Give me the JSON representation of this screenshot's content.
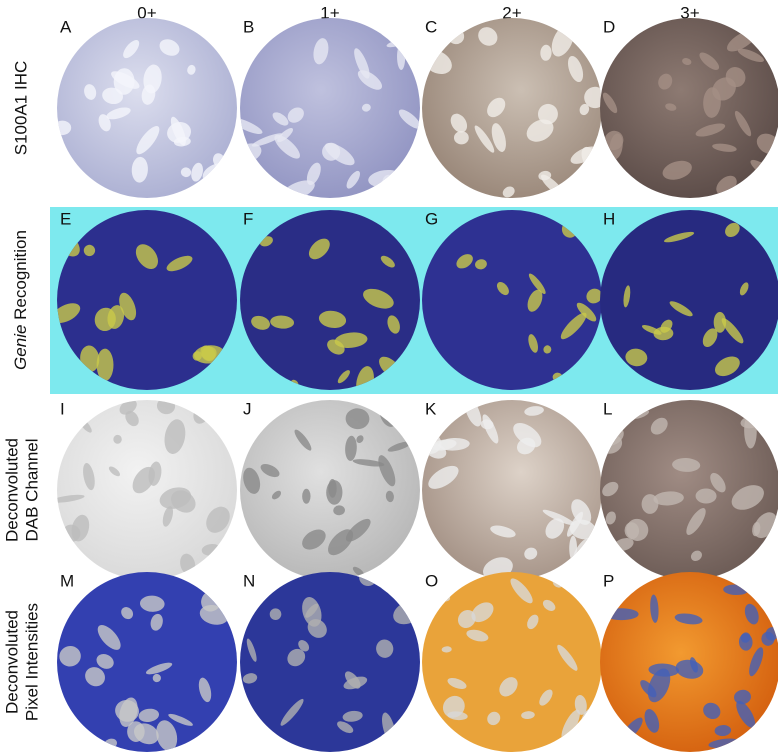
{
  "columns": [
    "0+",
    "1+",
    "2+",
    "3+"
  ],
  "rows": [
    {
      "lines": [
        "S100A1 IHC"
      ]
    },
    {
      "emphasis": "Genie",
      "text": "Recognition"
    },
    {
      "lines": [
        "Deconvoluted",
        "DAB Channel"
      ]
    },
    {
      "lines": [
        "Deconvoluted",
        "Pixel Intensities"
      ]
    }
  ],
  "panels": [
    "A",
    "B",
    "C",
    "D",
    "E",
    "F",
    "G",
    "H",
    "I",
    "J",
    "K",
    "L",
    "M",
    "N",
    "O",
    "P"
  ]
}
